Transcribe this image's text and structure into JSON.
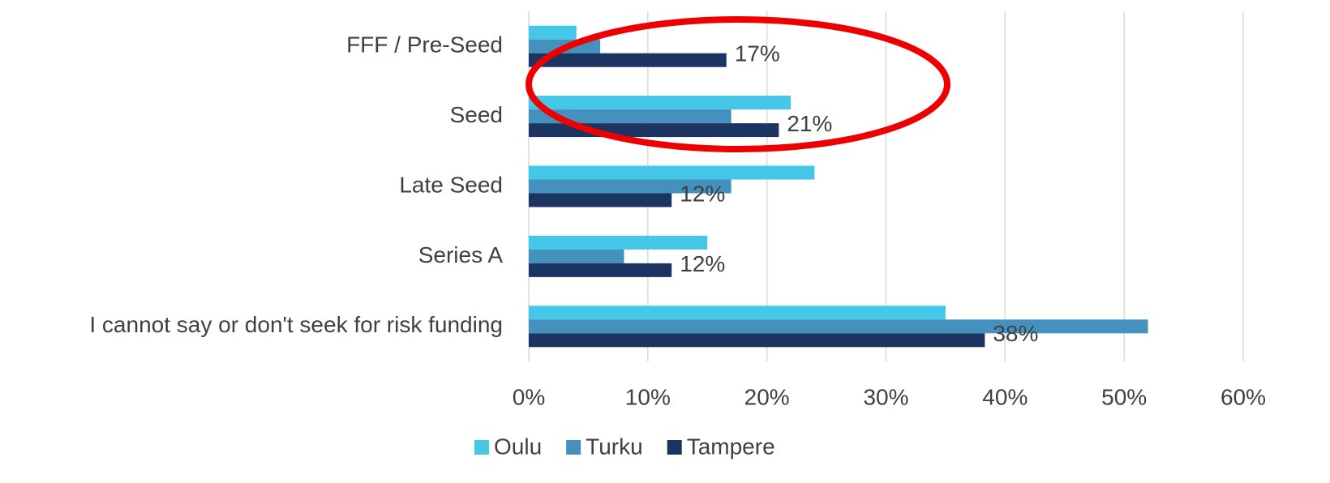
{
  "chart_data": {
    "type": "hbar",
    "categories": [
      "FFF / Pre-Seed",
      "Seed",
      "Late Seed",
      "Series A",
      "I cannot say or don't seek for risk funding"
    ],
    "series": [
      {
        "name": "Oulu",
        "color": "#45c8e8",
        "values": [
          4,
          22,
          24,
          15,
          35
        ]
      },
      {
        "name": "Turku",
        "color": "#4591bd",
        "values": [
          6,
          17,
          17,
          8,
          52
        ]
      },
      {
        "name": "Tampere",
        "color": "#1b3461",
        "values": [
          16.6,
          21,
          12,
          12,
          38.3
        ],
        "value_labels": [
          "17%",
          "21%",
          "12%",
          "12%",
          "38%"
        ]
      }
    ],
    "xlim": [
      0,
      60
    ],
    "xticks": [
      {
        "value": 0,
        "label": "0%"
      },
      {
        "value": 10,
        "label": "10%"
      },
      {
        "value": 20,
        "label": "20%"
      },
      {
        "value": 30,
        "label": "30%"
      },
      {
        "value": 40,
        "label": "40%"
      },
      {
        "value": 50,
        "label": "50%"
      },
      {
        "value": 60,
        "label": "60%"
      }
    ],
    "grid": true,
    "legend": "bottom"
  }
}
